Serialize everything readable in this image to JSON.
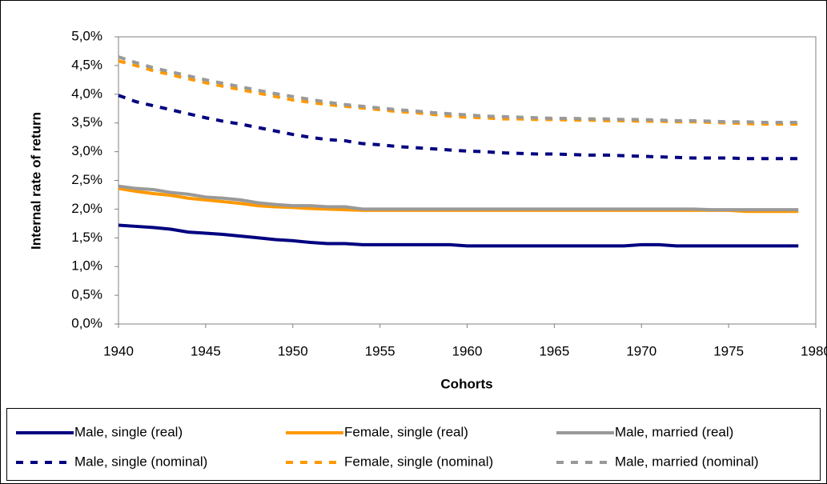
{
  "chart_data": {
    "type": "line",
    "xlabel": "Cohorts",
    "ylabel": "Internal rate of return",
    "x": [
      1940,
      1941,
      1942,
      1943,
      1944,
      1945,
      1946,
      1947,
      1948,
      1949,
      1950,
      1951,
      1952,
      1953,
      1954,
      1955,
      1956,
      1957,
      1958,
      1959,
      1960,
      1961,
      1962,
      1963,
      1964,
      1965,
      1966,
      1967,
      1968,
      1969,
      1970,
      1971,
      1972,
      1973,
      1974,
      1975,
      1976,
      1977,
      1978,
      1979
    ],
    "xlim": [
      1940,
      1980
    ],
    "xticks": [
      1940,
      1945,
      1950,
      1955,
      1960,
      1965,
      1970,
      1975,
      1980
    ],
    "ylim": [
      0,
      5
    ],
    "yticks": [
      {
        "value": 0,
        "label": "0,0%"
      },
      {
        "value": 0.5,
        "label": "0,5%"
      },
      {
        "value": 1,
        "label": "1,0%"
      },
      {
        "value": 1.5,
        "label": "1,5%"
      },
      {
        "value": 2,
        "label": "2,0%"
      },
      {
        "value": 2.5,
        "label": "2,5%"
      },
      {
        "value": 3,
        "label": "3,0%"
      },
      {
        "value": 3.5,
        "label": "3,5%"
      },
      {
        "value": 4,
        "label": "4,0%"
      },
      {
        "value": 4.5,
        "label": "4,5%"
      },
      {
        "value": 5,
        "label": "5,0%"
      }
    ],
    "grid": false,
    "legend": "bottom",
    "series": [
      {
        "name": "Male, single (real)",
        "color": "#000080",
        "style": "solid",
        "values": [
          1.72,
          1.7,
          1.68,
          1.65,
          1.6,
          1.58,
          1.56,
          1.53,
          1.5,
          1.47,
          1.45,
          1.42,
          1.4,
          1.4,
          1.38,
          1.38,
          1.38,
          1.38,
          1.38,
          1.38,
          1.36,
          1.36,
          1.36,
          1.36,
          1.36,
          1.36,
          1.36,
          1.36,
          1.36,
          1.36,
          1.38,
          1.38,
          1.36,
          1.36,
          1.36,
          1.36,
          1.36,
          1.36,
          1.36,
          1.36
        ]
      },
      {
        "name": "Female, single (real)",
        "color": "#FF9900",
        "style": "solid",
        "values": [
          2.36,
          2.31,
          2.27,
          2.24,
          2.19,
          2.16,
          2.13,
          2.1,
          2.06,
          2.04,
          2.03,
          2.01,
          2.0,
          1.99,
          1.98,
          1.98,
          1.98,
          1.98,
          1.98,
          1.98,
          1.98,
          1.98,
          1.98,
          1.98,
          1.98,
          1.98,
          1.98,
          1.98,
          1.98,
          1.98,
          1.98,
          1.98,
          1.98,
          1.98,
          1.98,
          1.98,
          1.96,
          1.96,
          1.96,
          1.96
        ]
      },
      {
        "name": "Male, married (real)",
        "color": "#999999",
        "style": "solid",
        "values": [
          2.4,
          2.36,
          2.34,
          2.29,
          2.26,
          2.21,
          2.19,
          2.16,
          2.11,
          2.08,
          2.06,
          2.06,
          2.04,
          2.04,
          2.0,
          2.0,
          2.0,
          2.0,
          2.0,
          2.0,
          2.0,
          2.0,
          2.0,
          2.0,
          2.0,
          2.0,
          2.0,
          2.0,
          2.0,
          2.0,
          2.0,
          2.0,
          2.0,
          2.0,
          1.99,
          1.99,
          1.99,
          1.99,
          1.99,
          1.99
        ]
      },
      {
        "name": "Male, single (nominal)",
        "color": "#000080",
        "style": "dashed",
        "values": [
          3.98,
          3.87,
          3.8,
          3.73,
          3.66,
          3.59,
          3.53,
          3.48,
          3.42,
          3.36,
          3.3,
          3.25,
          3.21,
          3.19,
          3.14,
          3.12,
          3.09,
          3.07,
          3.05,
          3.03,
          3.01,
          3.0,
          2.98,
          2.97,
          2.96,
          2.96,
          2.95,
          2.94,
          2.94,
          2.93,
          2.92,
          2.91,
          2.9,
          2.89,
          2.89,
          2.89,
          2.88,
          2.88,
          2.88,
          2.88
        ]
      },
      {
        "name": "Female, single (nominal)",
        "color": "#FF9900",
        "style": "dashed",
        "values": [
          4.58,
          4.5,
          4.41,
          4.34,
          4.27,
          4.2,
          4.14,
          4.08,
          4.02,
          3.96,
          3.9,
          3.86,
          3.82,
          3.79,
          3.76,
          3.73,
          3.7,
          3.68,
          3.65,
          3.62,
          3.6,
          3.59,
          3.57,
          3.57,
          3.56,
          3.56,
          3.55,
          3.55,
          3.54,
          3.54,
          3.53,
          3.53,
          3.52,
          3.52,
          3.51,
          3.5,
          3.49,
          3.48,
          3.48,
          3.48
        ]
      },
      {
        "name": "Male, married (nominal)",
        "color": "#999999",
        "style": "dashed",
        "values": [
          4.65,
          4.55,
          4.46,
          4.39,
          4.32,
          4.25,
          4.19,
          4.13,
          4.07,
          4.01,
          3.96,
          3.91,
          3.86,
          3.82,
          3.79,
          3.76,
          3.73,
          3.71,
          3.68,
          3.66,
          3.64,
          3.62,
          3.61,
          3.6,
          3.59,
          3.58,
          3.58,
          3.57,
          3.57,
          3.56,
          3.56,
          3.55,
          3.54,
          3.54,
          3.53,
          3.52,
          3.52,
          3.51,
          3.51,
          3.51
        ]
      }
    ]
  }
}
